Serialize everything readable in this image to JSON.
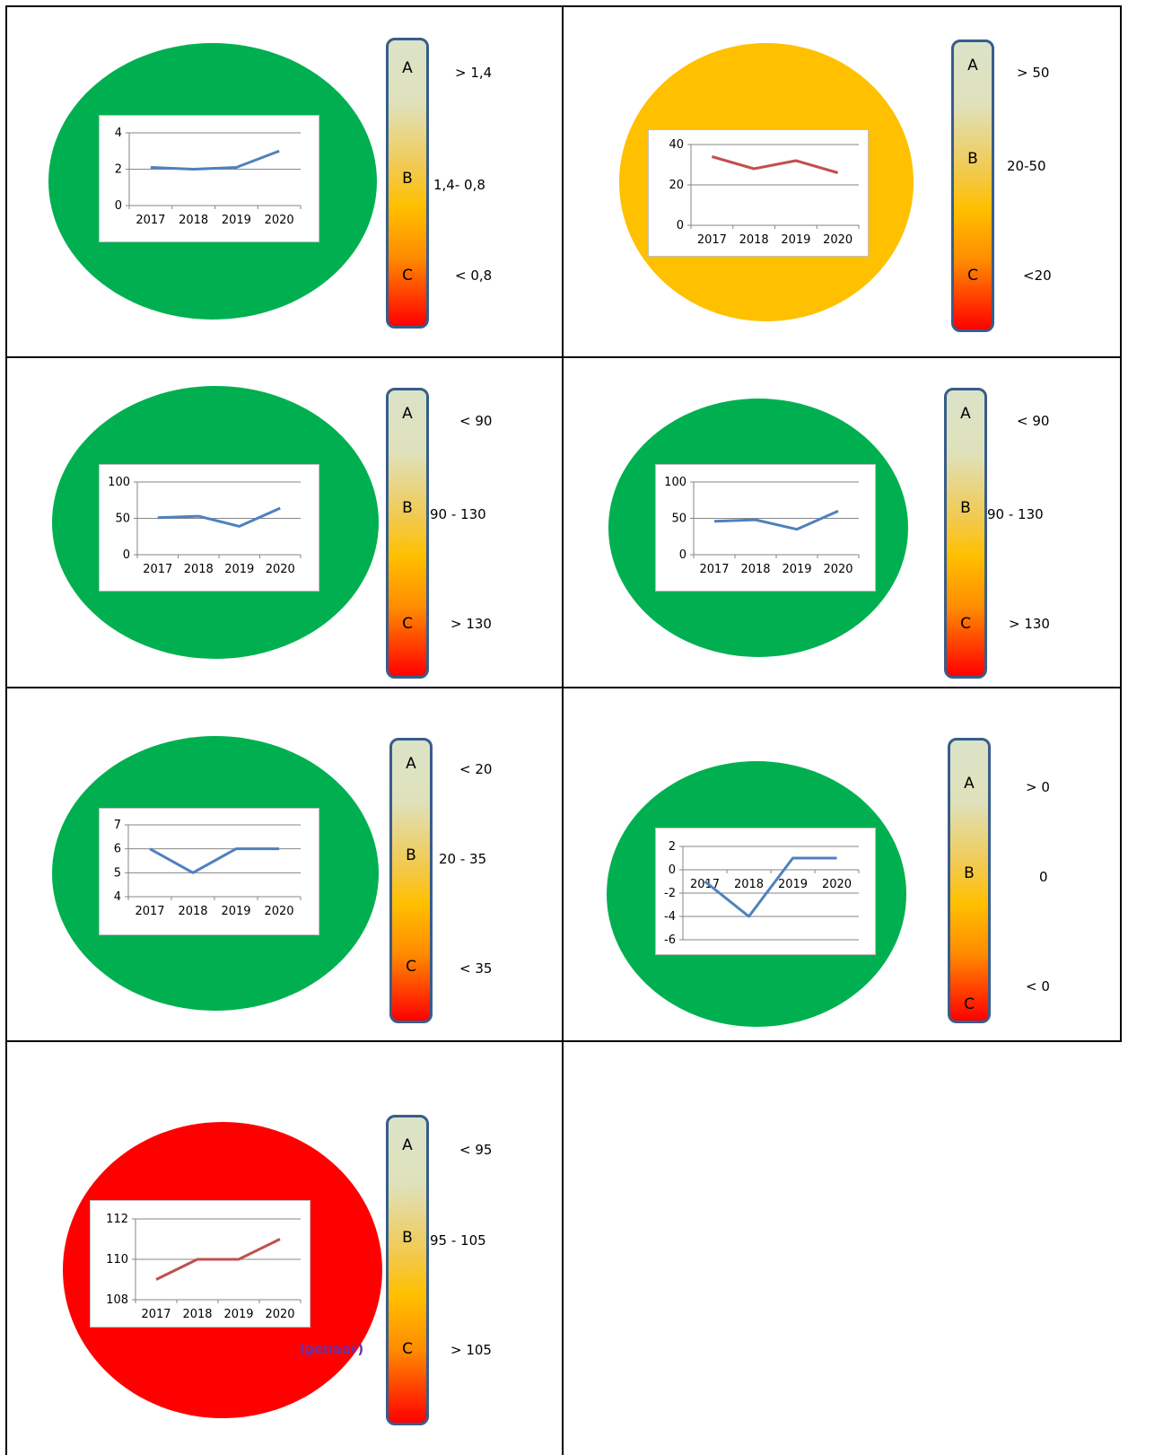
{
  "colors": {
    "green": "#00b050",
    "amber": "#ffc000",
    "red": "#ff0000",
    "series_blue": "#4f81bd",
    "series_red": "#c0504d",
    "bar_border": "#385d8a",
    "overlay_text": "#7030a0"
  },
  "scale_letters": [
    "A",
    "B",
    "C"
  ],
  "panels": [
    {
      "status_color": "green",
      "thresholds": [
        "> 1,4",
        "1,4- 0,8",
        "< 0,8"
      ],
      "overlay": ""
    },
    {
      "status_color": "amber",
      "thresholds": [
        "> 50",
        "20-50",
        "<20"
      ],
      "overlay": ""
    },
    {
      "status_color": "green",
      "thresholds": [
        "< 90",
        "90 - 130",
        "> 130"
      ],
      "overlay": ""
    },
    {
      "status_color": "green",
      "thresholds": [
        "< 90",
        "90 - 130",
        "> 130"
      ],
      "overlay": ""
    },
    {
      "status_color": "green",
      "thresholds": [
        "< 20",
        "20 - 35",
        "< 35"
      ],
      "overlay": ""
    },
    {
      "status_color": "green",
      "thresholds": [
        "> 0",
        "0",
        "< 0"
      ],
      "overlay": ""
    },
    {
      "status_color": "red",
      "thresholds": [
        "< 95",
        "95 - 105",
        "> 105"
      ],
      "overlay": "igenaar)"
    }
  ],
  "chart_data": [
    {
      "type": "line",
      "categories": [
        "2017",
        "2018",
        "2019",
        "2020"
      ],
      "series": [
        {
          "values": [
            2.1,
            2.0,
            2.1,
            3.0
          ],
          "color": "#4f81bd"
        }
      ],
      "ylim": [
        0,
        4
      ],
      "yticks": [
        0,
        2,
        4
      ],
      "grid": true,
      "legend": "none"
    },
    {
      "type": "line",
      "categories": [
        "2017",
        "2018",
        "2019",
        "2020"
      ],
      "series": [
        {
          "values": [
            34,
            28,
            32,
            26
          ],
          "color": "#c0504d"
        }
      ],
      "ylim": [
        0,
        40
      ],
      "yticks": [
        0,
        20,
        40
      ],
      "grid": true,
      "legend": "none"
    },
    {
      "type": "line",
      "categories": [
        "2017",
        "2018",
        "2019",
        "2020"
      ],
      "series": [
        {
          "values": [
            51,
            53,
            39,
            64
          ],
          "color": "#4f81bd"
        }
      ],
      "ylim": [
        0,
        100
      ],
      "yticks": [
        0,
        50,
        100
      ],
      "grid": true,
      "legend": "none"
    },
    {
      "type": "line",
      "categories": [
        "2017",
        "2018",
        "2019",
        "2020"
      ],
      "series": [
        {
          "values": [
            46,
            48,
            35,
            60
          ],
          "color": "#4f81bd"
        }
      ],
      "ylim": [
        0,
        100
      ],
      "yticks": [
        0,
        50,
        100
      ],
      "grid": true,
      "legend": "none"
    },
    {
      "type": "line",
      "categories": [
        "2017",
        "2018",
        "2019",
        "2020"
      ],
      "series": [
        {
          "values": [
            6,
            5,
            6,
            6
          ],
          "color": "#4f81bd"
        }
      ],
      "ylim": [
        4,
        7
      ],
      "yticks": [
        4,
        5,
        6,
        7
      ],
      "grid": true,
      "legend": "none"
    },
    {
      "type": "line",
      "categories": [
        "2017",
        "2018",
        "2019",
        "2020"
      ],
      "series": [
        {
          "values": [
            -1,
            -4,
            1,
            1
          ],
          "color": "#4f81bd"
        }
      ],
      "ylim": [
        -6,
        2
      ],
      "yticks": [
        -6,
        -4,
        -2,
        0,
        2
      ],
      "grid": true,
      "legend": "none",
      "category_labels_at_zero": true
    },
    {
      "type": "line",
      "categories": [
        "2017",
        "2018",
        "2019",
        "2020"
      ],
      "series": [
        {
          "values": [
            109,
            110,
            110,
            111
          ],
          "color": "#c0504d"
        }
      ],
      "ylim": [
        108,
        112
      ],
      "yticks": [
        108,
        110,
        112
      ],
      "grid": true,
      "legend": "none"
    }
  ]
}
